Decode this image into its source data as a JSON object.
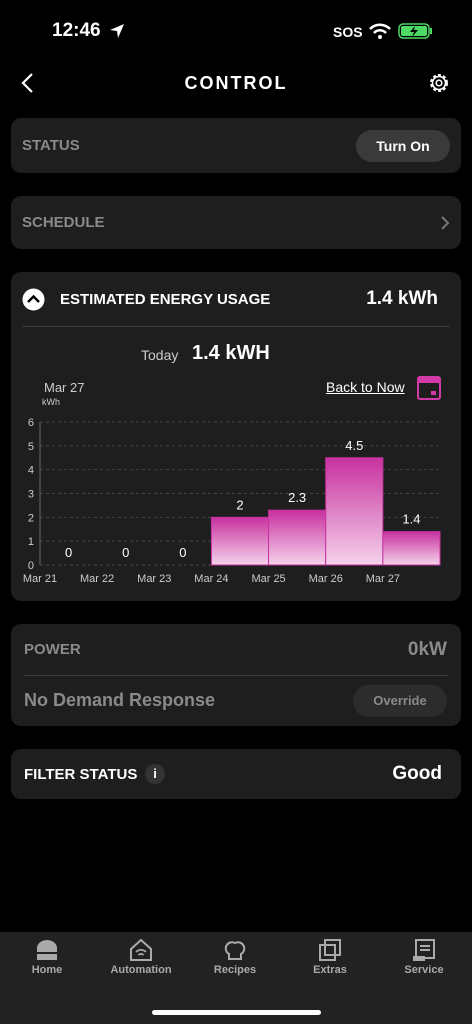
{
  "status_bar": {
    "time": "12:46",
    "sos": "SOS"
  },
  "header": {
    "title": "CONTROL"
  },
  "status_card": {
    "label": "STATUS",
    "button": "Turn On"
  },
  "schedule_card": {
    "label": "SCHEDULE"
  },
  "energy": {
    "title": "ESTIMATED ENERGY USAGE",
    "total": "1.4 kWh",
    "today_label": "Today",
    "today_value": "1.4 kWH",
    "date": "Mar 27",
    "back_link": "Back to Now"
  },
  "chart_data": {
    "type": "bar",
    "y_label": "kWh",
    "categories": [
      "Mar 21",
      "Mar 22",
      "Mar 23",
      "Mar 24",
      "Mar 25",
      "Mar 26",
      "Mar 27"
    ],
    "values": [
      0,
      0,
      0,
      2,
      2.3,
      4.5,
      1.4
    ],
    "color": "#c8319f",
    "ylim": [
      0,
      6
    ],
    "yticks": [
      0,
      1,
      2,
      3,
      4,
      5,
      6
    ],
    "grid": true
  },
  "power": {
    "label": "POWER",
    "value": "0kW",
    "demand": "No Demand Response",
    "button": "Override"
  },
  "filter": {
    "label": "FILTER STATUS",
    "info": "i",
    "value": "Good"
  },
  "nav": {
    "items": [
      "Home",
      "Automation",
      "Recipes",
      "Extras",
      "Service"
    ]
  }
}
